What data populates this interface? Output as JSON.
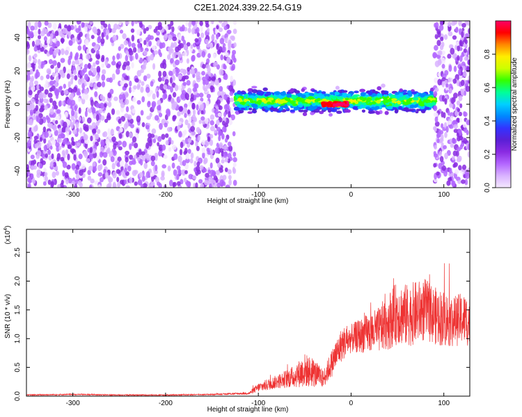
{
  "title": "C2E1.2024.339.22.54.G19",
  "colors": {
    "snr_line": "#ee3333",
    "colormap": [
      "#f4e8ff",
      "#d9b3ff",
      "#b366ff",
      "#8a2be2",
      "#5a1fd6",
      "#3333ff",
      "#0088ff",
      "#00d0ff",
      "#00ff99",
      "#33ff00",
      "#ccff00",
      "#ffee00",
      "#ff8800",
      "#ff0000",
      "#ff0066"
    ]
  },
  "chart_data": [
    {
      "type": "heatmap",
      "xlabel": "Height of straight line (km)",
      "ylabel": "Frequency (Hz)",
      "xlim": [
        -350,
        128
      ],
      "ylim": [
        -50,
        50
      ],
      "xticks": [
        -300,
        -200,
        -100,
        0,
        100
      ],
      "xtick_labels": [
        "-300",
        "-200",
        "-100",
        "0",
        "100"
      ],
      "yticks": [
        -40,
        -20,
        0,
        20,
        40
      ],
      "ytick_labels": [
        "-40",
        "-20",
        "0",
        "20",
        "40"
      ],
      "colorbar": {
        "label": "Normalized spectral amplitude",
        "range": [
          0,
          1
        ],
        "ticks": [
          0.0,
          0.2,
          0.4,
          0.6,
          0.8
        ],
        "tick_labels": [
          "0.0",
          "0.2",
          "0.4",
          "0.6",
          "0.8"
        ]
      },
      "regions": [
        {
          "x": [
            -350,
            -125
          ],
          "freq_spread_hz": 50,
          "amplitude": [
            0.05,
            0.25
          ]
        },
        {
          "x": [
            -125,
            90
          ],
          "freq_center_hz": 2,
          "freq_spread_hz": 6,
          "amplitude": [
            0.3,
            0.7
          ]
        },
        {
          "x": [
            -30,
            -5
          ],
          "freq_center_hz": 0,
          "freq_spread_hz": 1,
          "amplitude": [
            0.9,
            1.0
          ]
        },
        {
          "x": [
            90,
            128
          ],
          "freq_spread_hz": 50,
          "amplitude": [
            0.05,
            0.25
          ]
        }
      ]
    },
    {
      "type": "line",
      "xlabel": "Height of straight line (km)",
      "ylabel": "SNR (10 * v/v)",
      "y_multiplier": "(x10",
      "y_multiplier_exp": "4",
      "xlim": [
        -350,
        128
      ],
      "ylim": [
        0,
        2.9
      ],
      "xticks": [
        -300,
        -200,
        -100,
        0,
        100
      ],
      "xtick_labels": [
        "-300",
        "-200",
        "-100",
        "0",
        "100"
      ],
      "yticks": [
        0.0,
        0.5,
        1.0,
        1.5,
        2.0,
        2.5
      ],
      "ytick_labels": [
        "0.0",
        "0.5",
        "1.0",
        "1.5",
        "2.0",
        "2.5"
      ],
      "series": [
        {
          "x": [
            -350,
            -300,
            -250,
            -200,
            -150,
            -110,
            -100,
            -80,
            -60,
            -50,
            -40,
            -30,
            -20,
            -10,
            0,
            10,
            20,
            30,
            40,
            50,
            60,
            70,
            80,
            90,
            100,
            110,
            120,
            128
          ],
          "y": [
            0.02,
            0.03,
            0.02,
            0.02,
            0.03,
            0.05,
            0.15,
            0.25,
            0.35,
            0.45,
            0.4,
            0.3,
            0.6,
            0.9,
            1.0,
            1.05,
            1.1,
            1.15,
            1.3,
            1.45,
            1.4,
            1.45,
            1.5,
            1.4,
            1.35,
            1.3,
            1.35,
            1.3
          ],
          "spread": [
            0.01,
            0.01,
            0.01,
            0.01,
            0.01,
            0.02,
            0.08,
            0.12,
            0.2,
            0.3,
            0.25,
            0.15,
            0.25,
            0.3,
            0.25,
            0.3,
            0.35,
            0.4,
            0.5,
            0.55,
            0.55,
            0.55,
            0.55,
            0.5,
            0.5,
            0.45,
            0.45,
            0.45
          ]
        }
      ]
    }
  ]
}
